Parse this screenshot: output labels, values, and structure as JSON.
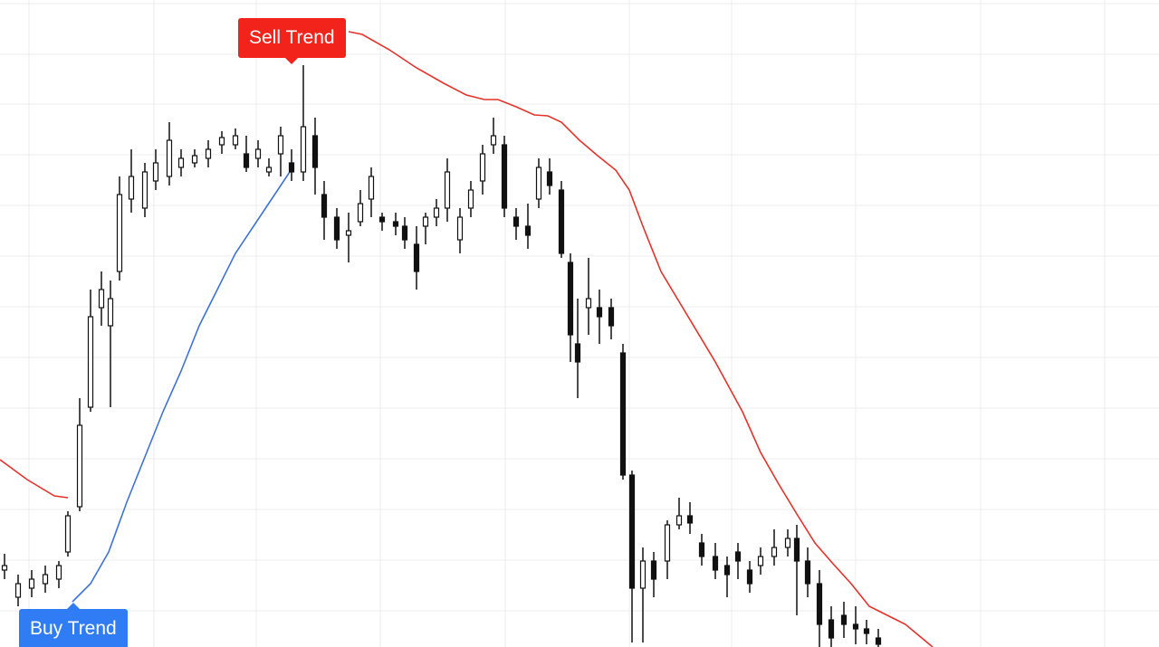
{
  "chart_data": {
    "type": "candlestick",
    "xlim": [
      0,
      1280
    ],
    "ylim": [
      0,
      715
    ],
    "xticks": [
      32,
      170,
      283,
      420,
      558,
      695,
      808,
      945,
      1083,
      1220
    ],
    "yticks": [
      40,
      96,
      152,
      208,
      264,
      320,
      376,
      432,
      488,
      544,
      600,
      655,
      711
    ],
    "grid": true,
    "grid_color": "#ececec",
    "candle_color": "#111111",
    "x": [
      5,
      20,
      35,
      50,
      65,
      75,
      88,
      100,
      112,
      122,
      132,
      145,
      160,
      172,
      187,
      200,
      215,
      230,
      245,
      260,
      272,
      285,
      297,
      310,
      322,
      335,
      348,
      358,
      372,
      385,
      398,
      410,
      422,
      437,
      447,
      460,
      470,
      482,
      494,
      508,
      520,
      533,
      545,
      557,
      570,
      583,
      595,
      607,
      620,
      630,
      638,
      650,
      662,
      675,
      688,
      698,
      710,
      722,
      737,
      750,
      762,
      775,
      790,
      803,
      815,
      828,
      840,
      855,
      870,
      880,
      892,
      905,
      918,
      932,
      945,
      957,
      970
    ],
    "open": [
      85,
      55,
      65,
      70,
      75,
      105,
      155,
      265,
      375,
      355,
      415,
      495,
      485,
      515,
      520,
      530,
      535,
      540,
      555,
      555,
      545,
      540,
      525,
      545,
      535,
      525,
      565,
      500,
      475,
      455,
      470,
      495,
      475,
      470,
      465,
      445,
      465,
      475,
      485,
      450,
      485,
      515,
      555,
      555,
      475,
      465,
      495,
      525,
      505,
      425,
      335,
      375,
      375,
      375,
      325,
      190,
      65,
      95,
      95,
      135,
      145,
      115,
      100,
      90,
      105,
      85,
      90,
      100,
      110,
      120,
      95,
      70,
      30,
      35,
      25,
      20,
      10
    ],
    "high": [
      103,
      80,
      85,
      90,
      95,
      150,
      275,
      395,
      415,
      405,
      520,
      550,
      535,
      550,
      580,
      550,
      550,
      560,
      570,
      573,
      565,
      560,
      540,
      575,
      550,
      643,
      585,
      515,
      485,
      480,
      505,
      530,
      480,
      480,
      475,
      465,
      480,
      495,
      540,
      485,
      515,
      555,
      585,
      565,
      485,
      490,
      540,
      540,
      515,
      435,
      385,
      430,
      395,
      385,
      335,
      195,
      110,
      105,
      140,
      165,
      160,
      125,
      115,
      100,
      115,
      95,
      110,
      130,
      130,
      135,
      110,
      85,
      45,
      50,
      45,
      30,
      20
    ],
    "low": [
      75,
      45,
      55,
      60,
      65,
      100,
      150,
      260,
      355,
      265,
      405,
      480,
      475,
      505,
      510,
      520,
      530,
      530,
      545,
      550,
      525,
      530,
      520,
      520,
      515,
      515,
      500,
      450,
      440,
      425,
      465,
      475,
      460,
      455,
      440,
      395,
      445,
      465,
      470,
      435,
      475,
      500,
      545,
      475,
      450,
      440,
      485,
      500,
      430,
      315,
      275,
      345,
      335,
      340,
      185,
      5,
      5,
      55,
      75,
      130,
      125,
      90,
      75,
      55,
      75,
      60,
      80,
      90,
      100,
      35,
      55,
      0,
      0,
      10,
      3,
      3,
      0
    ],
    "close": [
      90,
      70,
      75,
      80,
      90,
      145,
      245,
      365,
      395,
      385,
      500,
      520,
      525,
      535,
      560,
      540,
      543,
      550,
      563,
      565,
      530,
      550,
      530,
      565,
      525,
      575,
      530,
      475,
      450,
      460,
      490,
      520,
      470,
      465,
      450,
      415,
      475,
      485,
      525,
      475,
      505,
      545,
      565,
      485,
      465,
      455,
      530,
      510,
      435,
      345,
      315,
      385,
      365,
      355,
      190,
      65,
      95,
      75,
      135,
      145,
      137,
      100,
      85,
      80,
      95,
      70,
      100,
      110,
      120,
      95,
      70,
      25,
      10,
      25,
      20,
      15,
      3
    ],
    "lines": [
      {
        "color": "#e5322a",
        "x": [
          0,
          30,
          60,
          75,
          230,
          385,
          400,
          430,
          460,
          490,
          515,
          535,
          550,
          570,
          590,
          605,
          620,
          640,
          660,
          680,
          695,
          710,
          730,
          760,
          790,
          820,
          840,
          860,
          880,
          900,
          920,
          940,
          960,
          980,
          1000,
          1030
        ],
        "values": [
          207,
          185,
          167,
          165,
          null,
          680,
          677,
          660,
          640,
          623,
          610,
          605,
          605,
          597,
          588,
          587,
          580,
          560,
          543,
          527,
          505,
          465,
          415,
          365,
          315,
          260,
          215,
          180,
          147,
          115,
          92,
          70,
          45,
          35,
          25,
          0
        ]
      },
      {
        "color": "#3f72d8",
        "x": [
          80,
          100,
          120,
          140,
          160,
          180,
          200,
          220,
          240,
          260,
          280,
          300,
          320
        ],
        "values": [
          50,
          70,
          105,
          160,
          210,
          260,
          305,
          355,
          395,
          435,
          465,
          495,
          525
        ]
      }
    ],
    "annotations": [
      {
        "text": "Sell Trend",
        "color": "#f2231a"
      },
      {
        "text": "Buy Trend",
        "color": "#2f7cf5"
      }
    ]
  }
}
